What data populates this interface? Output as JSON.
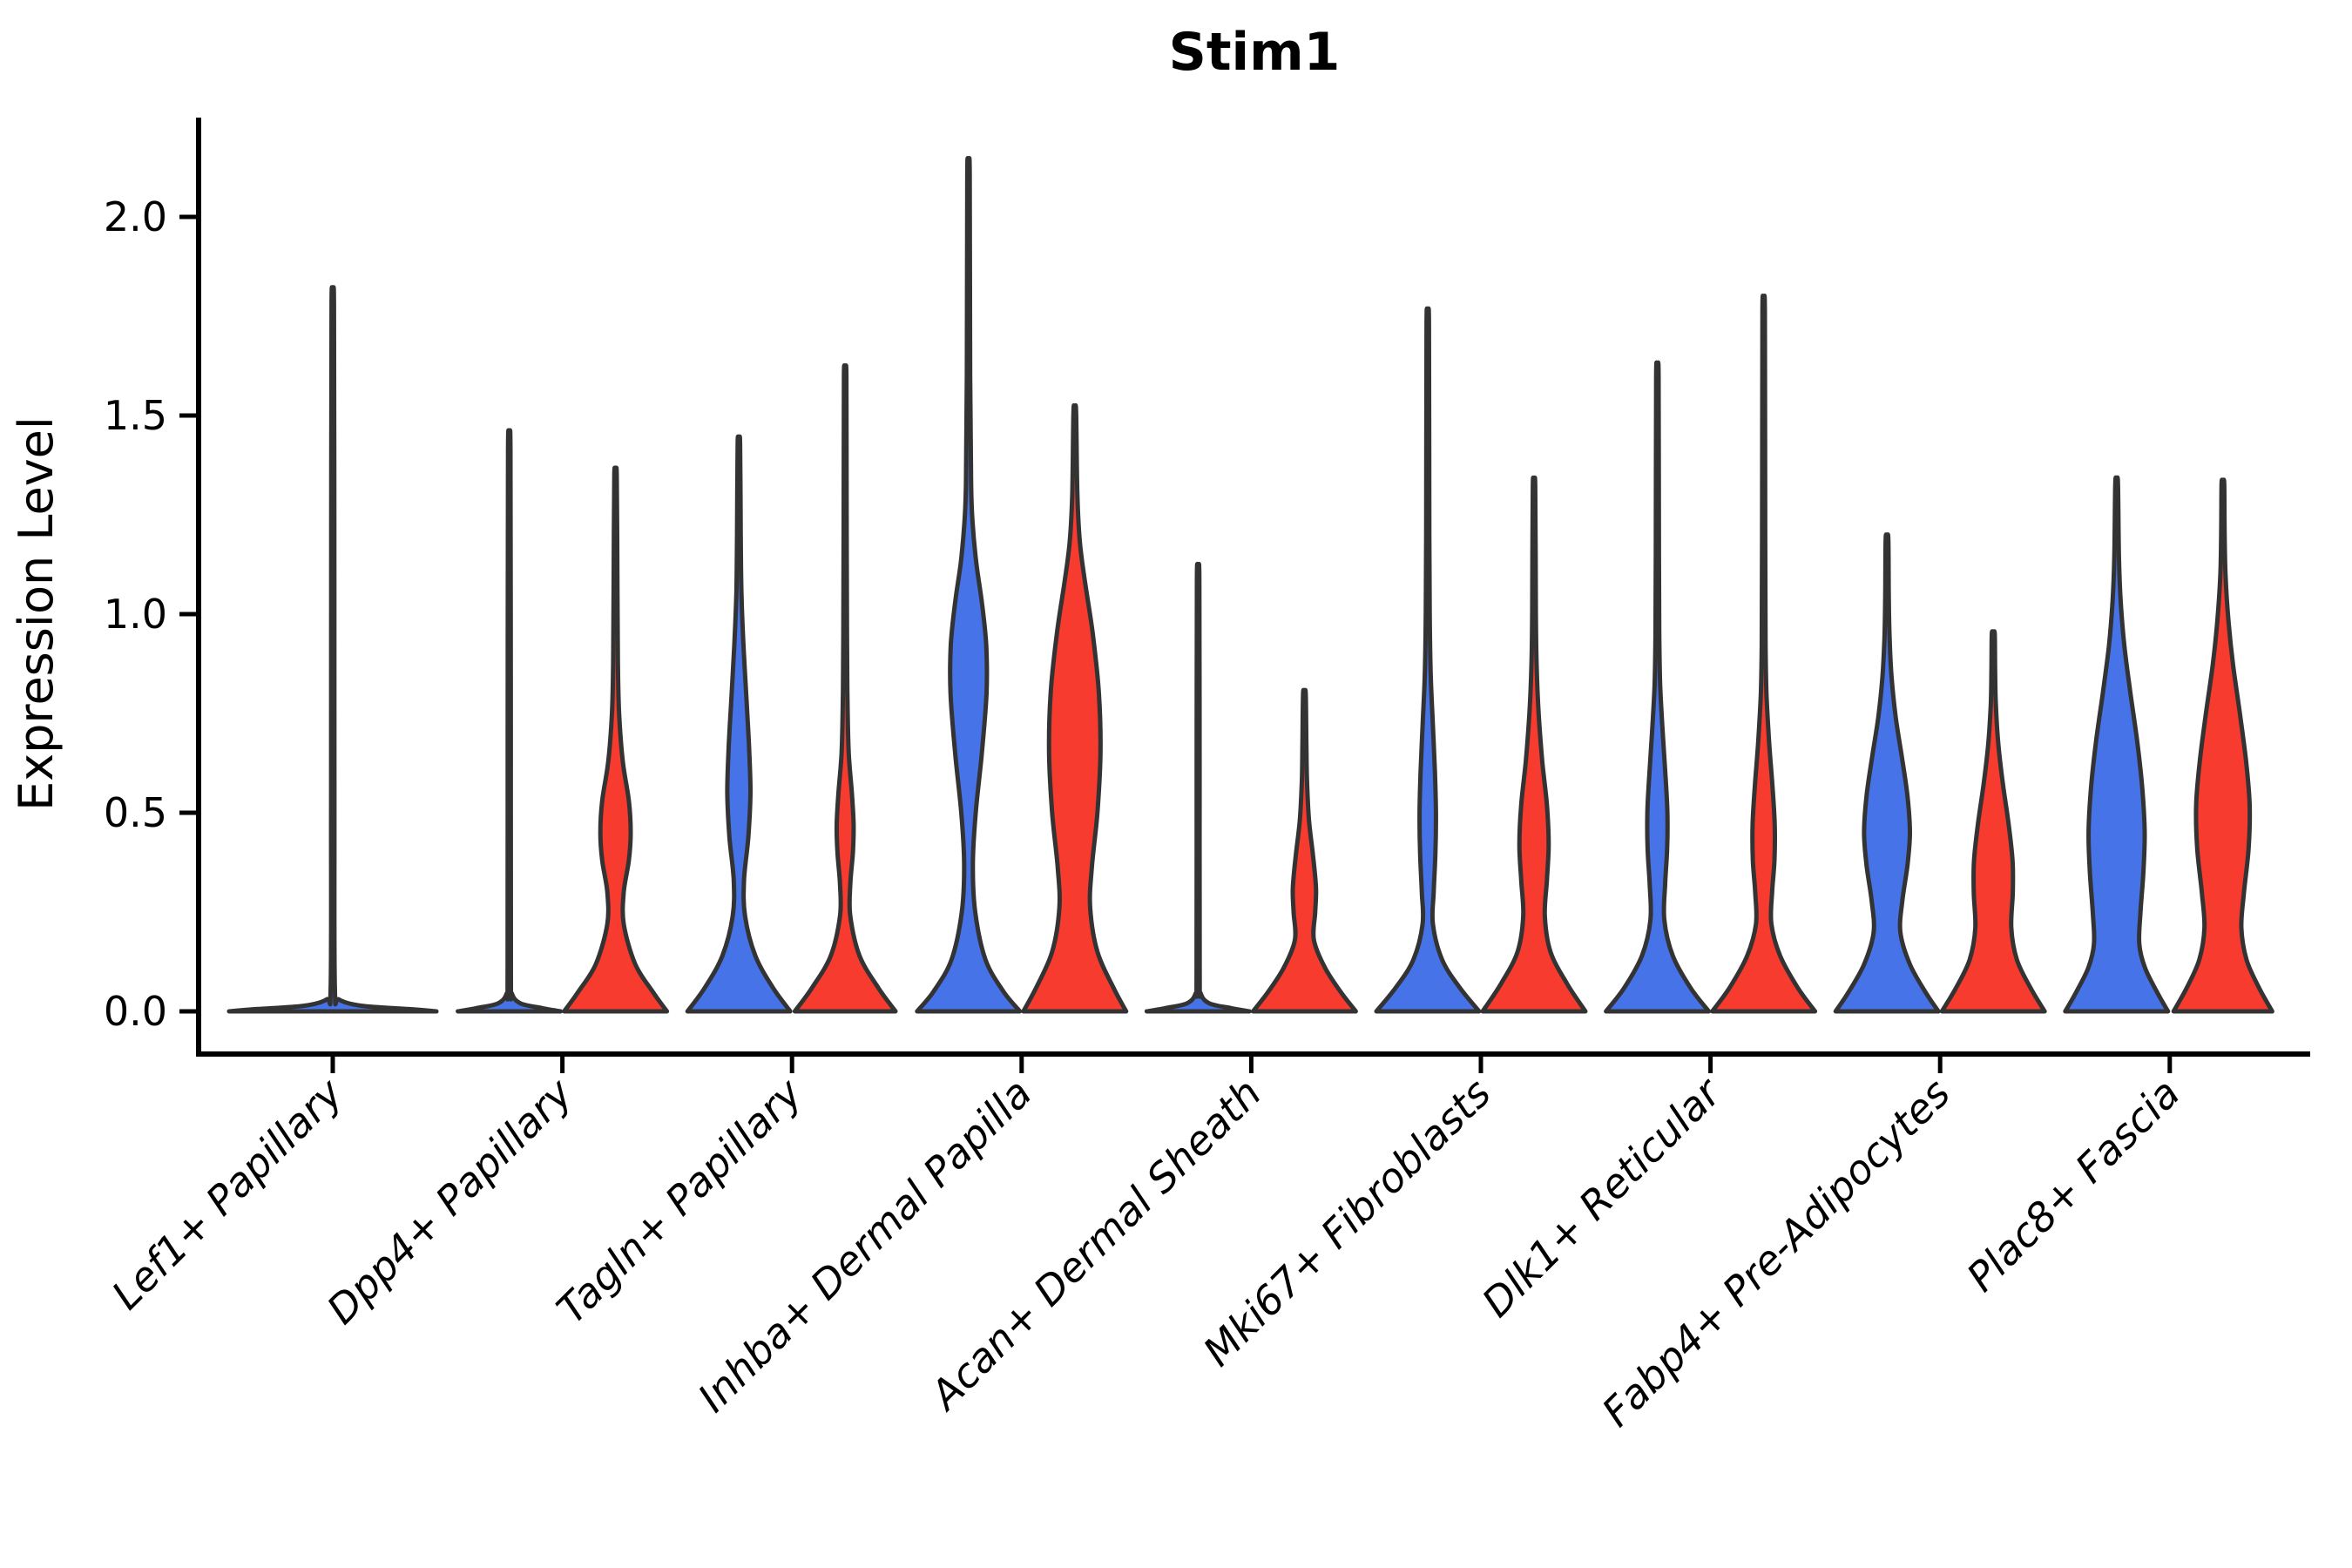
{
  "title": "Stim1",
  "y_axis": {
    "label": "Expression Level",
    "tick_labels": [
      "0.0",
      "0.5",
      "1.0",
      "1.5",
      "2.0"
    ],
    "tick_values": [
      0.0,
      0.5,
      1.0,
      1.5,
      2.0
    ]
  },
  "x_axis": {
    "categories": [
      "Lef1+ Papillary",
      "Dpp4+ Papillary",
      "Tagln+ Papillary",
      "Inhba+ Dermal Papilla",
      "Acan+ Dermal Sheath",
      "Mki67+ Fibroblasts",
      "Dlk1+ Reticular",
      "Fabp4+ Pre-Adipocytes",
      "Plac8+ Fascia"
    ]
  },
  "colors": {
    "blue_fill": "#4673E8",
    "red_fill": "#F73B2F",
    "outline": "#333333",
    "axis": "#000000",
    "text": "#000000"
  },
  "chart_data": {
    "type": "violin",
    "title": "Stim1",
    "xlabel": "",
    "ylabel": "Expression Level",
    "ylim": [
      0,
      2.2
    ],
    "grid": false,
    "legend": "none shown",
    "categories": [
      "Lef1+ Papillary",
      "Dpp4+ Papillary",
      "Tagln+ Papillary",
      "Inhba+ Dermal Papilla",
      "Acan+ Dermal Sheath",
      "Mki67+ Fibroblasts",
      "Dlk1+ Reticular",
      "Fabp4+ Pre-Adipocytes",
      "Plac8+ Fascia"
    ],
    "series": [
      {
        "name": "group-blue",
        "color": "#4673E8",
        "max_expression": [
          1.78,
          1.41,
          1.43,
          2.11,
          1.09,
          1.73,
          1.6,
          1.19,
          1.33
        ]
      },
      {
        "name": "group-red",
        "color": "#F73B2F",
        "max_expression": [
          null,
          1.35,
          1.6,
          1.51,
          0.8,
          1.32,
          1.76,
          0.95,
          1.33
        ]
      }
    ],
    "note": "Each violin given as density profile: pairs of [expression_value, relative_half_width] from 0 up to the max (thin spike).",
    "violins": [
      {
        "group": 0,
        "category": "Lef1+ Papillary",
        "side": "full",
        "color": "blue",
        "max": 1.78,
        "profile": [
          [
            0,
            1.0
          ],
          [
            0.006,
            0.72
          ],
          [
            0.014,
            0.28
          ],
          [
            0.03,
            0.06
          ],
          [
            0.06,
            0.02
          ],
          [
            0.5,
            0.016
          ],
          [
            1.2,
            0.015
          ],
          [
            1.78,
            0.012
          ]
        ]
      },
      {
        "group": 1,
        "category": "Dpp4+ Papillary",
        "side": "left",
        "color": "blue",
        "max": 1.41,
        "profile": [
          [
            0,
            1.0
          ],
          [
            0.008,
            0.65
          ],
          [
            0.02,
            0.22
          ],
          [
            0.045,
            0.05
          ],
          [
            0.09,
            0.032
          ],
          [
            0.7,
            0.03
          ],
          [
            1.41,
            0.024
          ]
        ]
      },
      {
        "group": 1,
        "category": "Dpp4+ Papillary",
        "side": "right",
        "color": "red",
        "max": 1.35,
        "profile": [
          [
            0,
            1.0
          ],
          [
            0.05,
            0.72
          ],
          [
            0.12,
            0.38
          ],
          [
            0.22,
            0.16
          ],
          [
            0.3,
            0.16
          ],
          [
            0.38,
            0.26
          ],
          [
            0.45,
            0.295
          ],
          [
            0.53,
            0.26
          ],
          [
            0.63,
            0.14
          ],
          [
            0.75,
            0.07
          ],
          [
            0.88,
            0.045
          ],
          [
            1.1,
            0.036
          ],
          [
            1.35,
            0.024
          ]
        ]
      },
      {
        "group": 2,
        "category": "Tagln+ Papillary",
        "side": "left",
        "color": "blue",
        "max": 1.43,
        "profile": [
          [
            0,
            1.0
          ],
          [
            0.06,
            0.66
          ],
          [
            0.14,
            0.32
          ],
          [
            0.24,
            0.12
          ],
          [
            0.33,
            0.1
          ],
          [
            0.44,
            0.185
          ],
          [
            0.55,
            0.225
          ],
          [
            0.66,
            0.2
          ],
          [
            0.78,
            0.15
          ],
          [
            0.92,
            0.09
          ],
          [
            1.05,
            0.05
          ],
          [
            1.2,
            0.036
          ],
          [
            1.43,
            0.024
          ]
        ]
      },
      {
        "group": 2,
        "category": "Tagln+ Papillary",
        "side": "right",
        "color": "red",
        "max": 1.6,
        "profile": [
          [
            0,
            0.98
          ],
          [
            0.06,
            0.64
          ],
          [
            0.14,
            0.28
          ],
          [
            0.24,
            0.1
          ],
          [
            0.32,
            0.1
          ],
          [
            0.4,
            0.15
          ],
          [
            0.47,
            0.165
          ],
          [
            0.55,
            0.13
          ],
          [
            0.65,
            0.07
          ],
          [
            0.78,
            0.045
          ],
          [
            0.95,
            0.035
          ],
          [
            1.25,
            0.028
          ],
          [
            1.6,
            0.024
          ]
        ]
      },
      {
        "group": 3,
        "category": "Inhba+ Dermal Papilla",
        "side": "left",
        "color": "blue",
        "max": 2.11,
        "profile": [
          [
            0,
            1.0
          ],
          [
            0.05,
            0.68
          ],
          [
            0.13,
            0.33
          ],
          [
            0.25,
            0.13
          ],
          [
            0.37,
            0.085
          ],
          [
            0.5,
            0.14
          ],
          [
            0.65,
            0.26
          ],
          [
            0.8,
            0.35
          ],
          [
            0.92,
            0.345
          ],
          [
            1.03,
            0.26
          ],
          [
            1.13,
            0.15
          ],
          [
            1.23,
            0.08
          ],
          [
            1.33,
            0.05
          ],
          [
            1.6,
            0.032
          ],
          [
            2.11,
            0.024
          ]
        ]
      },
      {
        "group": 3,
        "category": "Inhba+ Dermal Papilla",
        "side": "right",
        "color": "red",
        "max": 1.51,
        "profile": [
          [
            0,
            1.0
          ],
          [
            0.06,
            0.75
          ],
          [
            0.15,
            0.44
          ],
          [
            0.26,
            0.3
          ],
          [
            0.36,
            0.33
          ],
          [
            0.5,
            0.44
          ],
          [
            0.65,
            0.5
          ],
          [
            0.8,
            0.47
          ],
          [
            0.95,
            0.35
          ],
          [
            1.08,
            0.2
          ],
          [
            1.18,
            0.1
          ],
          [
            1.3,
            0.05
          ],
          [
            1.51,
            0.026
          ]
        ]
      },
      {
        "group": 4,
        "category": "Acan+ Dermal Sheath",
        "side": "left",
        "color": "blue",
        "max": 1.09,
        "profile": [
          [
            0,
            1.0
          ],
          [
            0.008,
            0.65
          ],
          [
            0.02,
            0.22
          ],
          [
            0.045,
            0.05
          ],
          [
            0.09,
            0.03
          ],
          [
            0.6,
            0.028
          ],
          [
            1.09,
            0.024
          ]
        ]
      },
      {
        "group": 4,
        "category": "Acan+ Dermal Sheath",
        "side": "right",
        "color": "red",
        "max": 0.8,
        "profile": [
          [
            0,
            1.0
          ],
          [
            0.05,
            0.7
          ],
          [
            0.11,
            0.4
          ],
          [
            0.18,
            0.185
          ],
          [
            0.25,
            0.21
          ],
          [
            0.31,
            0.225
          ],
          [
            0.39,
            0.17
          ],
          [
            0.48,
            0.09
          ],
          [
            0.58,
            0.05
          ],
          [
            0.68,
            0.038
          ],
          [
            0.8,
            0.026
          ]
        ]
      },
      {
        "group": 5,
        "category": "Mki67+ Fibroblasts",
        "side": "left",
        "color": "blue",
        "max": 1.73,
        "profile": [
          [
            0,
            1.0
          ],
          [
            0.06,
            0.62
          ],
          [
            0.13,
            0.28
          ],
          [
            0.22,
            0.1
          ],
          [
            0.3,
            0.115
          ],
          [
            0.4,
            0.15
          ],
          [
            0.5,
            0.16
          ],
          [
            0.6,
            0.14
          ],
          [
            0.72,
            0.1
          ],
          [
            0.84,
            0.06
          ],
          [
            0.97,
            0.04
          ],
          [
            1.2,
            0.03
          ],
          [
            1.73,
            0.024
          ]
        ]
      },
      {
        "group": 5,
        "category": "Mki67+ Fibroblasts",
        "side": "right",
        "color": "red",
        "max": 1.32,
        "profile": [
          [
            0,
            1.0
          ],
          [
            0.07,
            0.64
          ],
          [
            0.15,
            0.32
          ],
          [
            0.24,
            0.21
          ],
          [
            0.33,
            0.25
          ],
          [
            0.42,
            0.285
          ],
          [
            0.52,
            0.25
          ],
          [
            0.63,
            0.16
          ],
          [
            0.75,
            0.09
          ],
          [
            0.87,
            0.05
          ],
          [
            1.0,
            0.036
          ],
          [
            1.32,
            0.024
          ]
        ]
      },
      {
        "group": 6,
        "category": "Dlk1+ Reticular",
        "side": "left",
        "color": "blue",
        "max": 1.6,
        "profile": [
          [
            0,
            1.0
          ],
          [
            0.06,
            0.64
          ],
          [
            0.14,
            0.3
          ],
          [
            0.23,
            0.135
          ],
          [
            0.32,
            0.15
          ],
          [
            0.41,
            0.19
          ],
          [
            0.5,
            0.195
          ],
          [
            0.6,
            0.155
          ],
          [
            0.71,
            0.1
          ],
          [
            0.82,
            0.055
          ],
          [
            0.94,
            0.038
          ],
          [
            1.15,
            0.03
          ],
          [
            1.6,
            0.024
          ]
        ]
      },
      {
        "group": 6,
        "category": "Dlk1+ Reticular",
        "side": "right",
        "color": "red",
        "max": 1.76,
        "profile": [
          [
            0,
            1.0
          ],
          [
            0.06,
            0.66
          ],
          [
            0.14,
            0.32
          ],
          [
            0.22,
            0.15
          ],
          [
            0.3,
            0.165
          ],
          [
            0.38,
            0.21
          ],
          [
            0.47,
            0.215
          ],
          [
            0.57,
            0.17
          ],
          [
            0.68,
            0.105
          ],
          [
            0.8,
            0.055
          ],
          [
            0.92,
            0.038
          ],
          [
            1.2,
            0.03
          ],
          [
            1.76,
            0.024
          ]
        ]
      },
      {
        "group": 7,
        "category": "Fabp4+ Pre-Adipocytes",
        "side": "left",
        "color": "blue",
        "max": 1.19,
        "profile": [
          [
            0,
            1.0
          ],
          [
            0.05,
            0.74
          ],
          [
            0.12,
            0.44
          ],
          [
            0.2,
            0.26
          ],
          [
            0.28,
            0.3
          ],
          [
            0.37,
            0.4
          ],
          [
            0.45,
            0.445
          ],
          [
            0.54,
            0.4
          ],
          [
            0.64,
            0.29
          ],
          [
            0.74,
            0.17
          ],
          [
            0.84,
            0.09
          ],
          [
            0.94,
            0.05
          ],
          [
            1.05,
            0.034
          ],
          [
            1.19,
            0.026
          ]
        ]
      },
      {
        "group": 7,
        "category": "Fabp4+ Pre-Adipocytes",
        "side": "right",
        "color": "red",
        "max": 0.95,
        "profile": [
          [
            0,
            1.0
          ],
          [
            0.06,
            0.72
          ],
          [
            0.13,
            0.46
          ],
          [
            0.21,
            0.35
          ],
          [
            0.3,
            0.38
          ],
          [
            0.38,
            0.375
          ],
          [
            0.47,
            0.3
          ],
          [
            0.57,
            0.19
          ],
          [
            0.67,
            0.1
          ],
          [
            0.77,
            0.05
          ],
          [
            0.86,
            0.036
          ],
          [
            0.95,
            0.028
          ]
        ]
      },
      {
        "group": 8,
        "category": "Plac8+ Fascia",
        "side": "left",
        "color": "blue",
        "max": 1.33,
        "profile": [
          [
            0,
            1.0
          ],
          [
            0.05,
            0.78
          ],
          [
            0.11,
            0.55
          ],
          [
            0.17,
            0.44
          ],
          [
            0.25,
            0.465
          ],
          [
            0.35,
            0.52
          ],
          [
            0.45,
            0.545
          ],
          [
            0.56,
            0.5
          ],
          [
            0.68,
            0.4
          ],
          [
            0.8,
            0.27
          ],
          [
            0.92,
            0.15
          ],
          [
            1.03,
            0.08
          ],
          [
            1.14,
            0.045
          ],
          [
            1.33,
            0.026
          ]
        ]
      },
      {
        "group": 8,
        "category": "Plac8+ Fascia",
        "side": "right",
        "color": "red",
        "max": 1.33,
        "profile": [
          [
            0,
            0.96
          ],
          [
            0.06,
            0.7
          ],
          [
            0.13,
            0.46
          ],
          [
            0.21,
            0.36
          ],
          [
            0.3,
            0.41
          ],
          [
            0.41,
            0.5
          ],
          [
            0.52,
            0.52
          ],
          [
            0.63,
            0.45
          ],
          [
            0.75,
            0.33
          ],
          [
            0.87,
            0.2
          ],
          [
            0.98,
            0.11
          ],
          [
            1.1,
            0.05
          ],
          [
            1.22,
            0.032
          ],
          [
            1.33,
            0.026
          ]
        ]
      }
    ]
  }
}
